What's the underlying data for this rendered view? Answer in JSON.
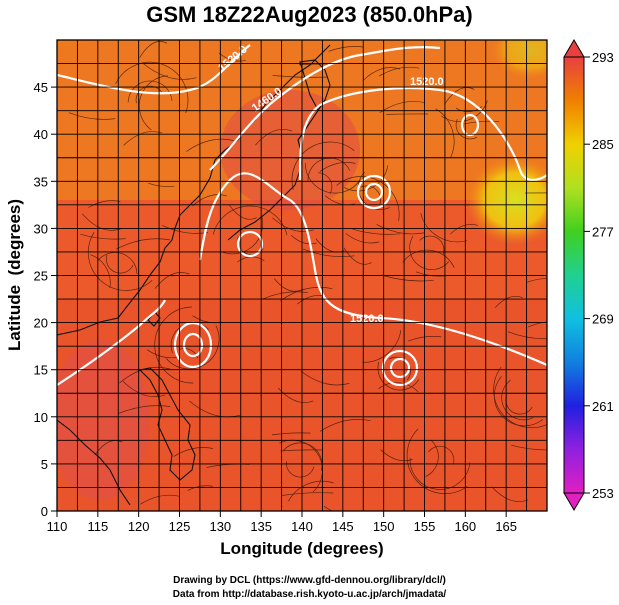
{
  "title": "GSM 18Z22Aug2023 (850.0hPa)",
  "credits": [
    "Drawing by DCL (https://www.gfd-dennou.org/library/dcl/)",
    "Data from http://database.rish.kyoto-u.ac.jp/arch/jmadata/"
  ],
  "chart_data": {
    "type": "heatmap",
    "xlabel": "Longitude (degrees)",
    "ylabel": "Latitude  (degrees)",
    "xlim": [
      110,
      170
    ],
    "ylim": [
      0,
      50
    ],
    "x_ticks": [
      110,
      115,
      120,
      125,
      130,
      135,
      140,
      145,
      150,
      155,
      160,
      165
    ],
    "y_ticks": [
      0,
      5,
      10,
      15,
      20,
      25,
      30,
      35,
      40,
      45
    ],
    "colorbar": {
      "min": 253,
      "max": 293,
      "ticks": [
        253,
        261,
        269,
        277,
        285,
        293
      ],
      "colors": [
        "#e020c0",
        "#9020e0",
        "#2020e0",
        "#1080e0",
        "#10c0e0",
        "#20d090",
        "#40d020",
        "#b0e020",
        "#f0d000",
        "#f08000",
        "#f03020",
        "#e05050"
      ]
    },
    "contour_labels": [
      "1520.0",
      "1460.0",
      "1520.0",
      "1520.0"
    ],
    "overlays": [
      "temperature shading",
      "wind streamlines",
      "geopotential height contours (white)",
      "coastlines"
    ]
  }
}
